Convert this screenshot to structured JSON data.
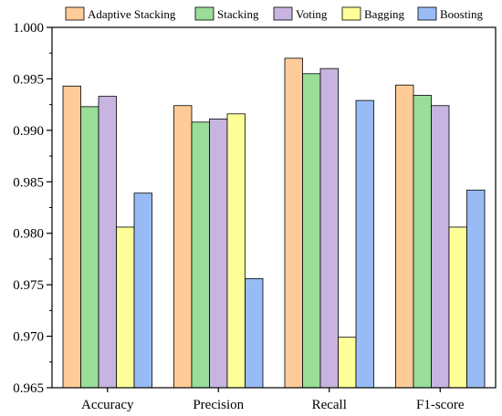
{
  "chart_data": {
    "type": "bar",
    "title": "",
    "xlabel": "",
    "ylabel": "",
    "categories": [
      "Accuracy",
      "Precision",
      "Recall",
      "F1-score"
    ],
    "ylim": [
      0.965,
      1.0
    ],
    "yticks": [
      "0.965",
      "0.970",
      "0.975",
      "0.980",
      "0.985",
      "0.990",
      "0.995",
      "1.000"
    ],
    "grid": false,
    "legend_position": "top",
    "series": [
      {
        "name": "Adaptive Stacking",
        "color": "#FFCC99",
        "values": [
          0.9943,
          0.9924,
          0.997,
          0.9944
        ]
      },
      {
        "name": "Stacking",
        "color": "#99DD99",
        "values": [
          0.9923,
          0.9908,
          0.9955,
          0.9934
        ]
      },
      {
        "name": "Voting",
        "color": "#C8B4E0",
        "values": [
          0.9933,
          0.9911,
          0.996,
          0.9924
        ]
      },
      {
        "name": "Bagging",
        "color": "#FFFF99",
        "values": [
          0.9806,
          0.9916,
          0.9699,
          0.9806
        ]
      },
      {
        "name": "Boosting",
        "color": "#99BBF5",
        "values": [
          0.9839,
          0.9756,
          0.9929,
          0.9842
        ]
      }
    ]
  }
}
